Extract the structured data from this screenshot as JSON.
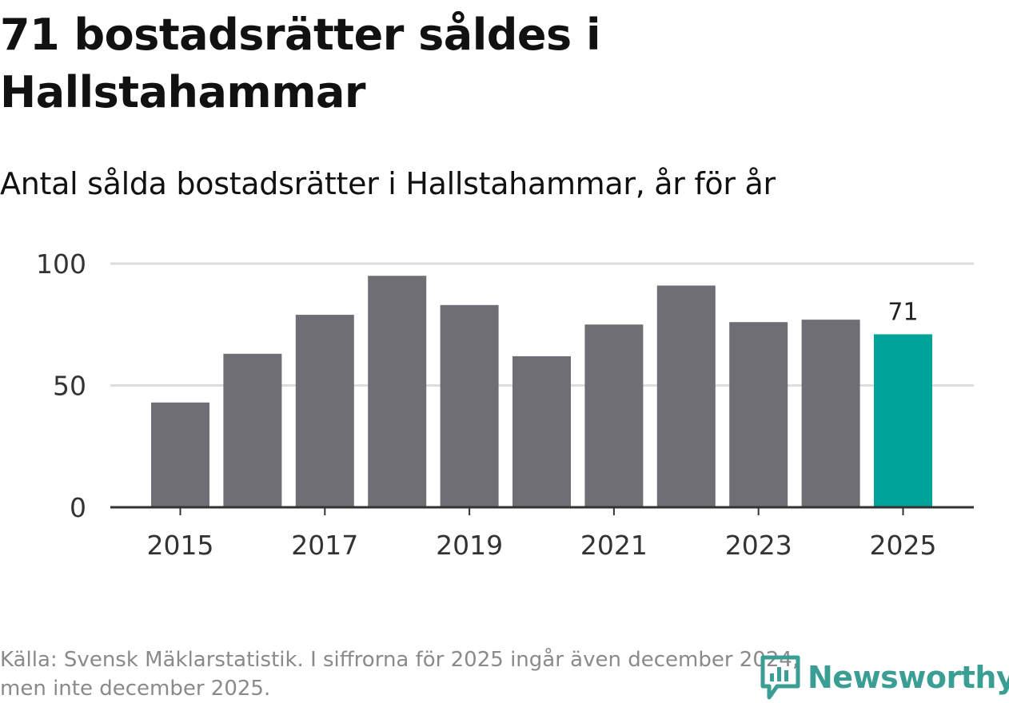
{
  "title": "71 bostadsrätter såldes i Hallstahammar",
  "subtitle": "Antal sålda bostadsrätter i Hallstahammar, år för år",
  "source_line1": "Källa: Svensk Mäklarstatistik. I siffrorna för 2025 ingår även december 2024,",
  "source_line2": "men inte december 2025.",
  "logo_text": "Newsworthy",
  "colors": {
    "bar": "#6f6e74",
    "highlight": "#00a398",
    "grid": "#dddddd",
    "axis": "#333333",
    "logo": "#3a9e95"
  },
  "chart_data": {
    "type": "bar",
    "title": "Antal sålda bostadsrätter i Hallstahammar, år för år",
    "categories": [
      "2015",
      "2016",
      "2017",
      "2018",
      "2019",
      "2020",
      "2021",
      "2022",
      "2023",
      "2024",
      "2025"
    ],
    "values": [
      43,
      63,
      79,
      95,
      83,
      62,
      75,
      91,
      76,
      77,
      71
    ],
    "xtick_labels": [
      "2015",
      "2017",
      "2019",
      "2021",
      "2023",
      "2025"
    ],
    "ytick_labels": [
      "0",
      "50",
      "100"
    ],
    "yticks": [
      0,
      50,
      100
    ],
    "ylim": [
      0,
      100
    ],
    "highlight_index": 10,
    "highlight_label": "71",
    "xlabel": "",
    "ylabel": "",
    "grid": true
  }
}
